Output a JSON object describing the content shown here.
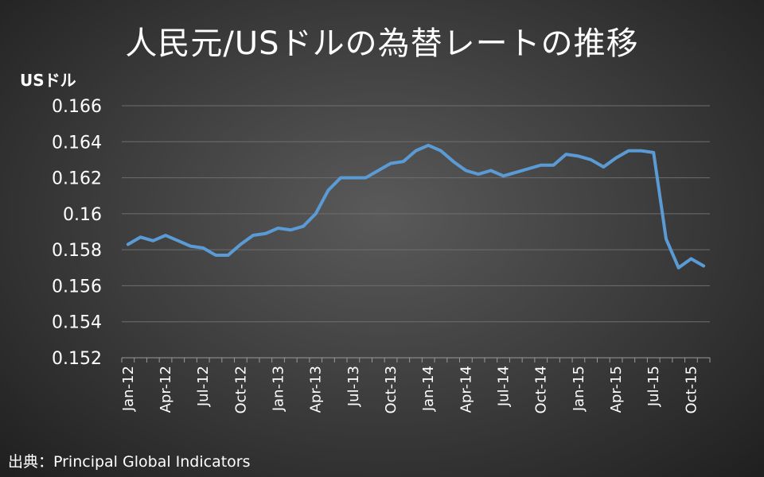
{
  "title": "人民元/USドルの為替レートの推移",
  "source": "出典：Principal Global Indicators",
  "chart_data": {
    "type": "line",
    "ylabel": "USドル",
    "ylim": [
      0.152,
      0.166
    ],
    "yticks": [
      0.166,
      0.164,
      0.162,
      0.16,
      0.158,
      0.156,
      0.154,
      0.152
    ],
    "ytick_labels": [
      "0.166",
      "0.164",
      "0.162",
      "0.16",
      "0.158",
      "0.156",
      "0.154",
      "0.152"
    ],
    "xtick_labels": [
      "Jan-12",
      "Apr-12",
      "Jul-12",
      "Oct-12",
      "Jan-13",
      "Apr-13",
      "Jul-13",
      "Oct-13",
      "Jan-14",
      "Apr-14",
      "Jul-14",
      "Oct-14",
      "Jan-15",
      "Apr-15",
      "Jul-15",
      "Oct-15"
    ],
    "grid": true,
    "line_color": "#5b9bd5",
    "series": [
      {
        "values": [
          0.1583,
          0.1587,
          0.1585,
          0.1588,
          0.1585,
          0.1582,
          0.1581,
          0.1577,
          0.1577,
          0.1583,
          0.1588,
          0.1589,
          0.1592,
          0.1591,
          0.1593,
          0.16,
          0.1613,
          0.162,
          0.162,
          0.162,
          0.1624,
          0.1628,
          0.1629,
          0.1635,
          0.1638,
          0.1635,
          0.1629,
          0.1624,
          0.1622,
          0.1624,
          0.1621,
          0.1623,
          0.1625,
          0.1627,
          0.1627,
          0.1633,
          0.1632,
          0.163,
          0.1626,
          0.1631,
          0.1635,
          0.1635,
          0.1634,
          0.1586,
          0.157,
          0.1575,
          0.1571
        ]
      }
    ]
  }
}
